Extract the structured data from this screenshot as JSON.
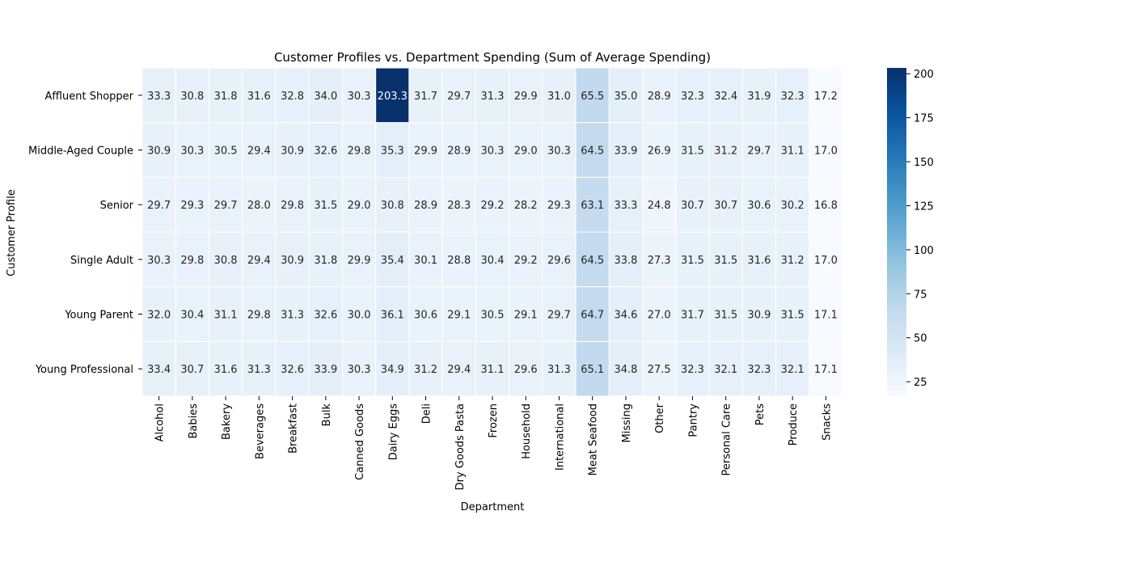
{
  "chart_data": {
    "type": "heatmap",
    "title": "Customer Profiles vs. Department Spending (Sum of Average Spending)",
    "xlabel": "Department",
    "ylabel": "Customer Profile",
    "columns": [
      "Alcohol",
      "Babies",
      "Bakery",
      "Beverages",
      "Breakfast",
      "Bulk",
      "Canned Goods",
      "Dairy Eggs",
      "Deli",
      "Dry Goods Pasta",
      "Frozen",
      "Household",
      "International",
      "Meat Seafood",
      "Missing",
      "Other",
      "Pantry",
      "Personal Care",
      "Pets",
      "Produce",
      "Snacks"
    ],
    "rows": [
      "Affluent Shopper",
      "Middle-Aged Couple",
      "Senior",
      "Single Adult",
      "Young Parent",
      "Young Professional"
    ],
    "values": [
      [
        33.3,
        30.8,
        31.8,
        31.6,
        32.8,
        34.0,
        30.3,
        203.3,
        31.7,
        29.7,
        31.3,
        29.9,
        31.0,
        65.5,
        35.0,
        28.9,
        32.3,
        32.4,
        31.9,
        32.3,
        17.2
      ],
      [
        30.9,
        30.3,
        30.5,
        29.4,
        30.9,
        32.6,
        29.8,
        35.3,
        29.9,
        28.9,
        30.3,
        29.0,
        30.3,
        64.5,
        33.9,
        26.9,
        31.5,
        31.2,
        29.7,
        31.1,
        17.0
      ],
      [
        29.7,
        29.3,
        29.7,
        28.0,
        29.8,
        31.5,
        29.0,
        30.8,
        28.9,
        28.3,
        29.2,
        28.2,
        29.3,
        63.1,
        33.3,
        24.8,
        30.7,
        30.7,
        30.6,
        30.2,
        16.8
      ],
      [
        30.3,
        29.8,
        30.8,
        29.4,
        30.9,
        31.8,
        29.9,
        35.4,
        30.1,
        28.8,
        30.4,
        29.2,
        29.6,
        64.5,
        33.8,
        27.3,
        31.5,
        31.5,
        31.6,
        31.2,
        17.0
      ],
      [
        32.0,
        30.4,
        31.1,
        29.8,
        31.3,
        32.6,
        30.0,
        36.1,
        30.6,
        29.1,
        30.5,
        29.1,
        29.7,
        64.7,
        34.6,
        27.0,
        31.7,
        31.5,
        30.9,
        31.5,
        17.1
      ],
      [
        33.4,
        30.7,
        31.6,
        31.3,
        32.6,
        33.9,
        30.3,
        34.9,
        31.2,
        29.4,
        31.1,
        29.6,
        31.3,
        65.1,
        34.8,
        27.5,
        32.3,
        32.1,
        32.3,
        32.1,
        17.1
      ]
    ],
    "colorbar": {
      "min": 16.8,
      "max": 203.3,
      "ticks": [
        25,
        50,
        75,
        100,
        125,
        150,
        175,
        200
      ],
      "colormap": "Blues",
      "stops": [
        "#f7fbff",
        "#deebf7",
        "#c6dbef",
        "#9ecae1",
        "#6baed6",
        "#4292c6",
        "#2171b5",
        "#08519c",
        "#08306b"
      ]
    },
    "annotation_decimals": 1,
    "grid": false,
    "cell_borders": "#ffffff"
  }
}
